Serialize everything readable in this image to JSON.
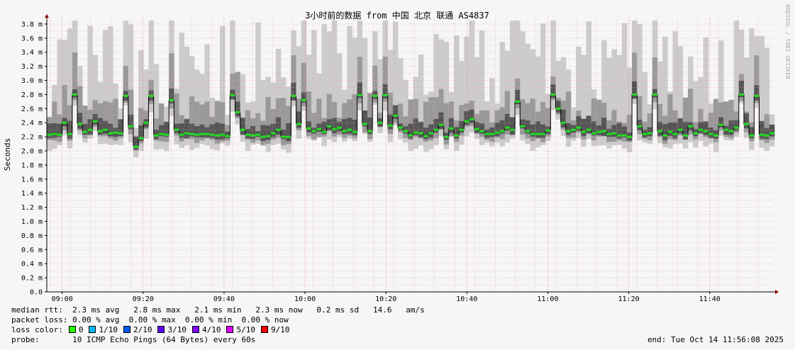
{
  "chart_data": {
    "type": "area",
    "title": "3小时前的数据 from 中国 北京 联通 AS4837",
    "ylabel": "Seconds",
    "watermark": "RRDTOOL / TOBI OETIKER",
    "ylim": [
      0,
      3.9
    ],
    "y_ticks": [
      "0.0",
      "0.2 m",
      "0.4 m",
      "0.6 m",
      "0.8 m",
      "1.0 m",
      "1.2 m",
      "1.4 m",
      "1.6 m",
      "1.8 m",
      "2.0 m",
      "2.2 m",
      "2.4 m",
      "2.6 m",
      "2.8 m",
      "3.0 m",
      "3.2 m",
      "3.4 m",
      "3.6 m",
      "3.8 m"
    ],
    "x_ticks": [
      "09:00",
      "09:20",
      "09:40",
      "10:00",
      "10:20",
      "10:40",
      "11:00",
      "11:20",
      "11:40"
    ],
    "x_tick_minutes": [
      0,
      20,
      40,
      60,
      80,
      100,
      120,
      140,
      160
    ],
    "x_start_minute": -3.8,
    "x_end_minute": 176,
    "grid": true,
    "series": [
      {
        "name": "median rtt",
        "color": "#22dd22",
        "values": [
          2.23,
          2.24,
          2.23,
          2.4,
          2.24,
          2.8,
          2.38,
          2.27,
          2.3,
          2.42,
          2.28,
          2.3,
          2.25,
          2.26,
          2.25,
          2.78,
          2.35,
          2.06,
          2.18,
          2.4,
          2.78,
          2.22,
          2.24,
          2.23,
          2.72,
          2.3,
          2.23,
          2.25,
          2.24,
          2.23,
          2.24,
          2.24,
          2.23,
          2.22,
          2.23,
          2.21,
          2.79,
          2.55,
          2.3,
          2.23,
          2.22,
          2.23,
          2.2,
          2.21,
          2.25,
          2.3,
          2.2,
          2.2,
          2.78,
          2.38,
          2.72,
          2.32,
          2.28,
          2.31,
          2.27,
          2.35,
          2.31,
          2.33,
          2.28,
          2.3,
          2.27,
          2.79,
          2.38,
          2.28,
          2.78,
          2.4,
          2.79,
          2.36,
          2.5,
          2.33,
          2.28,
          2.22,
          2.26,
          2.25,
          2.21,
          2.25,
          2.3,
          2.37,
          2.2,
          2.32,
          2.22,
          2.3,
          2.42,
          2.45,
          2.31,
          2.28,
          2.24,
          2.24,
          2.26,
          2.28,
          2.33,
          2.3,
          2.7,
          2.35,
          2.28,
          2.24,
          2.24,
          2.24,
          2.29,
          2.8,
          2.6,
          2.4,
          2.28,
          2.3,
          2.33,
          2.27,
          2.3,
          2.25,
          2.27,
          2.28,
          2.24,
          2.25,
          2.22,
          2.22,
          2.2,
          2.8,
          2.35,
          2.24,
          2.25,
          2.8,
          2.28,
          2.22,
          2.27,
          2.24,
          2.3,
          2.22,
          2.35,
          2.25,
          2.3,
          2.28,
          2.24,
          2.22,
          2.37,
          2.3,
          2.28,
          2.33,
          2.8,
          2.38,
          2.22,
          2.78,
          2.23,
          2.22,
          2.25
        ]
      }
    ]
  },
  "legend": {
    "median_rtt_label": "median rtt:",
    "median_rtt_values": "2.3 ms avg   2.8 ms max   2.1 ms min   2.3 ms now   0.2 ms sd   14.6   am/s",
    "packet_loss_label": "packet loss:",
    "packet_loss_values": "0.00 % avg  0.00 % max  0.00 % min  0.00 % now",
    "loss_color_label": "loss color:",
    "loss_colors": [
      {
        "label": "0",
        "color": "#26ff00"
      },
      {
        "label": "1/10",
        "color": "#00b8ff"
      },
      {
        "label": "2/10",
        "color": "#0059ff"
      },
      {
        "label": "3/10",
        "color": "#5e00ff"
      },
      {
        "label": "4/10",
        "color": "#7e00ff"
      },
      {
        "label": "5/10",
        "color": "#dd00ff"
      },
      {
        "label": "9/10",
        "color": "#ff0000"
      }
    ],
    "probe_label": "probe:",
    "probe_value": "10 ICMP Echo Pings (64 Bytes) every 60s",
    "end_time": "end: Tue Oct 14 11:56:08 2025"
  }
}
